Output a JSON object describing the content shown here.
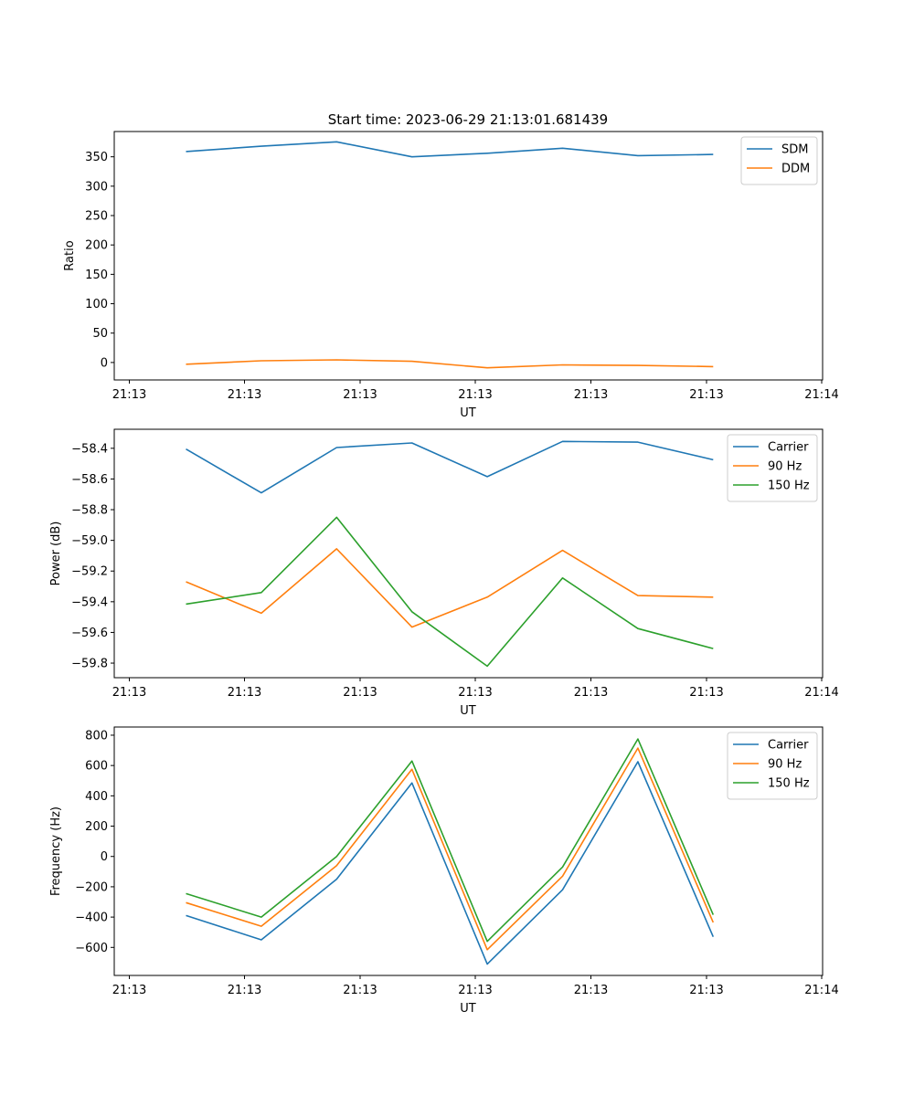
{
  "title": "Start time: 2023-06-29 21:13:01.681439",
  "colors": {
    "c0": "#1f77b4",
    "c1": "#ff7f0e",
    "c2": "#2ca02c"
  },
  "chart_data": [
    {
      "type": "line",
      "xlabel": "UT",
      "ylabel": "Ratio",
      "x_tick_labels": [
        "21:13",
        "21:13",
        "21:13",
        "21:13",
        "21:13",
        "21:13",
        "21:14"
      ],
      "yticks": [
        0,
        50,
        100,
        150,
        200,
        250,
        300,
        350
      ],
      "ylim": [
        -29.7,
        393
      ],
      "grid": false,
      "legend_position": "top-right",
      "series": [
        {
          "name": "SDM",
          "color": "#1f77b4",
          "values": [
            359,
            368,
            375.5,
            350,
            356,
            364.5,
            352,
            354
          ]
        },
        {
          "name": "DDM",
          "color": "#ff7f0e",
          "values": [
            -3,
            3,
            4.5,
            2,
            -9,
            -4,
            -5,
            -7
          ]
        }
      ]
    },
    {
      "type": "line",
      "xlabel": "UT",
      "ylabel": "Power (dB)",
      "x_tick_labels": [
        "21:13",
        "21:13",
        "21:13",
        "21:13",
        "21:13",
        "21:13",
        "21:14"
      ],
      "yticks": [
        -59.8,
        -59.6,
        -59.4,
        -59.2,
        -59.0,
        -58.8,
        -58.6,
        -58.4
      ],
      "ytick_labels": [
        "−59.8",
        "−59.6",
        "−59.4",
        "−59.2",
        "−59.0",
        "−58.8",
        "−58.6",
        "−58.4"
      ],
      "ylim": [
        -59.895,
        -58.276
      ],
      "grid": false,
      "legend_position": "top-right",
      "series": [
        {
          "name": "Carrier",
          "color": "#1f77b4",
          "values": [
            -58.405,
            -58.69,
            -58.395,
            -58.365,
            -58.585,
            -58.355,
            -58.36,
            -58.475
          ]
        },
        {
          "name": "90 Hz",
          "color": "#ff7f0e",
          "values": [
            -59.27,
            -59.475,
            -59.055,
            -59.565,
            -59.37,
            -59.065,
            -59.36,
            -59.37
          ]
        },
        {
          "name": "150 Hz",
          "color": "#2ca02c",
          "values": [
            -59.415,
            -59.34,
            -58.85,
            -59.465,
            -59.82,
            -59.245,
            -59.575,
            -59.705
          ]
        }
      ]
    },
    {
      "type": "line",
      "xlabel": "UT",
      "ylabel": "Frequency (Hz)",
      "x_tick_labels": [
        "21:13",
        "21:13",
        "21:13",
        "21:13",
        "21:13",
        "21:13",
        "21:14"
      ],
      "yticks": [
        -600,
        -400,
        -200,
        0,
        200,
        400,
        600,
        800
      ],
      "ytick_labels": [
        "−600",
        "−400",
        "−200",
        "0",
        "200",
        "400",
        "600",
        "800"
      ],
      "ylim": [
        -785,
        854
      ],
      "grid": false,
      "legend_position": "top-right",
      "series": [
        {
          "name": "Carrier",
          "color": "#1f77b4",
          "values": [
            -390,
            -550,
            -150,
            485,
            -710,
            -220,
            625,
            -530
          ]
        },
        {
          "name": "90 Hz",
          "color": "#ff7f0e",
          "values": [
            -305,
            -460,
            -60,
            575,
            -615,
            -130,
            715,
            -435
          ]
        },
        {
          "name": "150 Hz",
          "color": "#2ca02c",
          "values": [
            -245,
            -400,
            0,
            630,
            -560,
            -70,
            775,
            -385
          ]
        }
      ]
    }
  ]
}
